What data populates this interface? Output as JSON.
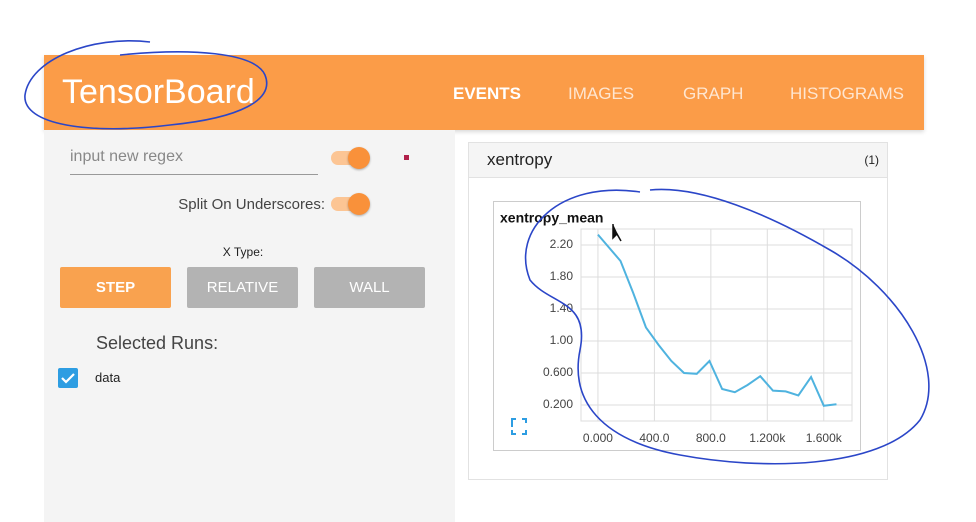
{
  "header": {
    "title": "TensorBoard",
    "tabs": [
      "EVENTS",
      "IMAGES",
      "GRAPH",
      "HISTOGRAMS"
    ]
  },
  "sidebar": {
    "regex_placeholder": "input new regex",
    "split_label": "Split On Underscores:",
    "x_type_label": "X Type:",
    "x_type_buttons": [
      "STEP",
      "RELATIVE",
      "WALL"
    ],
    "runs_label": "Selected Runs:",
    "runs": [
      "data"
    ]
  },
  "panel": {
    "title": "xentropy",
    "count": "(1)"
  },
  "chart_data": {
    "type": "line",
    "title": "xentropy_mean",
    "x": [
      0,
      160,
      250,
      340,
      430,
      520,
      610,
      700,
      790,
      880,
      970,
      1060,
      1150,
      1240,
      1330,
      1420,
      1510,
      1600,
      1690
    ],
    "values": [
      2.33,
      2.0,
      1.6,
      1.17,
      0.95,
      0.75,
      0.6,
      0.59,
      0.75,
      0.4,
      0.36,
      0.45,
      0.56,
      0.38,
      0.37,
      0.32,
      0.55,
      0.19,
      0.21
    ],
    "color": "#4fb3df",
    "xlim": [
      -120,
      1800
    ],
    "xticks": [
      {
        "value": 0,
        "label": "0.000"
      },
      {
        "value": 400,
        "label": "400.0"
      },
      {
        "value": 800,
        "label": "800.0"
      },
      {
        "value": 1200,
        "label": "1.200k"
      },
      {
        "value": 1600,
        "label": "1.600k"
      }
    ],
    "ylim": [
      0,
      2.4
    ],
    "yticks": [
      {
        "value": 0.2,
        "label": "0.200"
      },
      {
        "value": 0.6,
        "label": "0.600"
      },
      {
        "value": 1,
        "label": "1.00"
      },
      {
        "value": 1.4,
        "label": "1.40"
      },
      {
        "value": 1.8,
        "label": "1.80"
      },
      {
        "value": 2.2,
        "label": "2.20"
      }
    ],
    "grid": true
  }
}
